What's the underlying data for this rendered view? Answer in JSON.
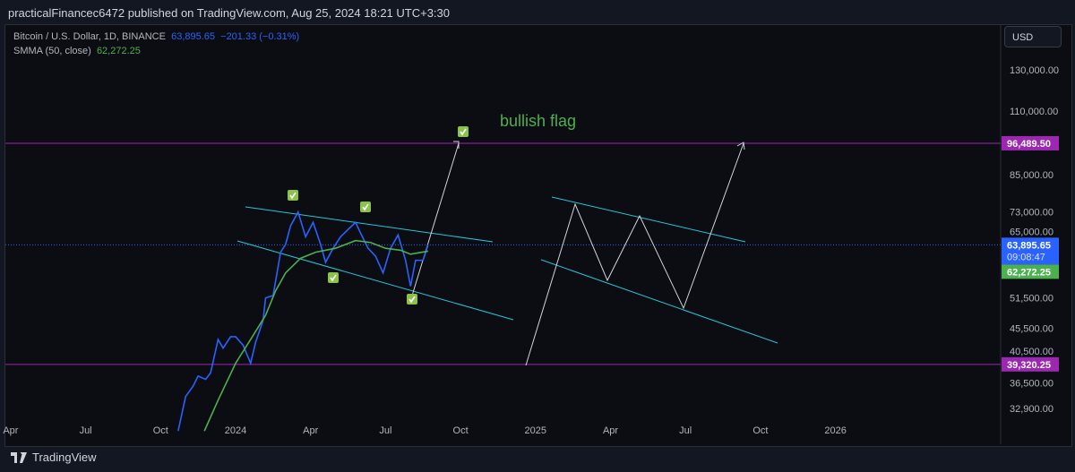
{
  "header": {
    "published": "practicalFinancec6472 published on TradingView.com, Aug 25, 2024 18:21 UTC+3:30"
  },
  "legend": {
    "symbol": "Bitcoin / U.S. Dollar, 1D, BINANCE",
    "price": "63,895.65",
    "change": "−201.33 (−0.31%)",
    "smma_label": "SMMA (50, close)",
    "smma_value": "62,272.25"
  },
  "currency": "USD",
  "footer": {
    "brand": "TradingView"
  },
  "colors": {
    "price": "#2962ff",
    "smma": "#4caf50",
    "level": "#9c27b0",
    "channel": "#26c6da",
    "projection": "#d1d4dc"
  },
  "chart_data": {
    "type": "line",
    "scale": "log",
    "ylim": [
      30000,
      150000
    ],
    "y_ticks": [
      130000,
      110000,
      85000,
      73000,
      65000,
      51500,
      45500,
      40500,
      36500,
      32900
    ],
    "y_tick_labels": [
      "130,000.00",
      "110,000.00",
      "85,000.00",
      "73,000.00",
      "65,000.00",
      "51,500.00",
      "45,500.00",
      "40,500.00",
      "36,500.00",
      "32,900.00"
    ],
    "x_ticks": [
      {
        "m": -9,
        "label": "Apr"
      },
      {
        "m": -6,
        "label": "Jul"
      },
      {
        "m": -3,
        "label": "Oct"
      },
      {
        "m": 0,
        "label": "2024"
      },
      {
        "m": 3,
        "label": "Apr"
      },
      {
        "m": 6,
        "label": "Jul"
      },
      {
        "m": 9,
        "label": "Oct"
      },
      {
        "m": 12,
        "label": "2025"
      },
      {
        "m": 15,
        "label": "Apr"
      },
      {
        "m": 18,
        "label": "Jul"
      },
      {
        "m": 21,
        "label": "Oct"
      },
      {
        "m": 24,
        "label": "2026"
      }
    ],
    "series": [
      {
        "name": "BTCUSD",
        "points": [
          [
            -2.3,
            30000
          ],
          [
            -2,
            34500
          ],
          [
            -1.7,
            36000
          ],
          [
            -1.5,
            37500
          ],
          [
            -1.2,
            37000
          ],
          [
            -1,
            38000
          ],
          [
            -0.7,
            43500
          ],
          [
            -0.5,
            42000
          ],
          [
            -0.2,
            44000
          ],
          [
            0,
            44000
          ],
          [
            0.3,
            42500
          ],
          [
            0.6,
            39500
          ],
          [
            0.8,
            43000
          ],
          [
            1.1,
            47000
          ],
          [
            1.2,
            51500
          ],
          [
            1.5,
            52000
          ],
          [
            1.8,
            62000
          ],
          [
            2.0,
            64000
          ],
          [
            2.2,
            69000
          ],
          [
            2.5,
            73000
          ],
          [
            2.8,
            66000
          ],
          [
            3.1,
            70000
          ],
          [
            3.4,
            64000
          ],
          [
            3.6,
            59500
          ],
          [
            3.9,
            63000
          ],
          [
            4.2,
            66000
          ],
          [
            4.5,
            68000
          ],
          [
            4.8,
            70000
          ],
          [
            5.0,
            67000
          ],
          [
            5.3,
            63000
          ],
          [
            5.6,
            61000
          ],
          [
            5.9,
            57000
          ],
          [
            6.2,
            63000
          ],
          [
            6.5,
            66500
          ],
          [
            6.8,
            60000
          ],
          [
            7.0,
            54000
          ],
          [
            7.2,
            60000
          ],
          [
            7.5,
            60000
          ],
          [
            7.7,
            63895.65
          ]
        ]
      },
      {
        "name": "SMMA (50, close)",
        "points": [
          [
            -1.25,
            30000
          ],
          [
            -0.7,
            34000
          ],
          [
            0,
            39500
          ],
          [
            0.6,
            43500
          ],
          [
            1.2,
            48000
          ],
          [
            1.6,
            53000
          ],
          [
            2.0,
            57000
          ],
          [
            2.6,
            60500
          ],
          [
            3.2,
            62000
          ],
          [
            4.0,
            63000
          ],
          [
            4.8,
            65000
          ],
          [
            5.4,
            64500
          ],
          [
            6.0,
            63000
          ],
          [
            6.6,
            62500
          ],
          [
            7.0,
            61500
          ],
          [
            7.7,
            62272.25
          ]
        ]
      }
    ],
    "levels": [
      {
        "value": 96489.5,
        "label": "96,489.50"
      },
      {
        "value": 39320.25,
        "label": "39,320.25"
      }
    ],
    "last_price": {
      "value": 63895.65,
      "label": "63,895.65",
      "countdown": "09:08:47"
    },
    "smma_last": {
      "value": 62272.25,
      "label": "62,272.25"
    },
    "annotation": "bullish flag"
  }
}
